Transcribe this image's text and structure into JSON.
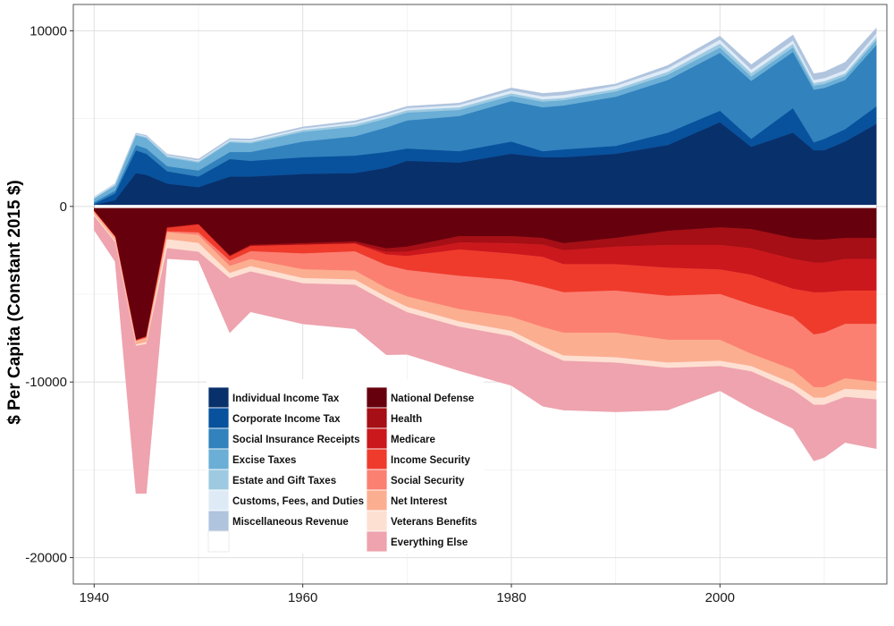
{
  "chart_data": {
    "type": "area",
    "title": "",
    "xlabel": "",
    "ylabel": "$ Per Capita (Constant 2015 $)",
    "xlim": [
      1938,
      2016
    ],
    "ylim": [
      -21500,
      11500
    ],
    "x_ticks": [
      1940,
      1960,
      1980,
      2000
    ],
    "y_ticks": [
      10000,
      0,
      -10000,
      -20000
    ],
    "x_tick_labels": [
      "1940",
      "1960",
      "1980",
      "2000"
    ],
    "y_tick_labels": [
      "10000",
      "0",
      "-10000",
      "-20000"
    ],
    "grid": true,
    "legend_position": "bottom-left-inside",
    "stacked": true,
    "x": [
      1940,
      1942,
      1944,
      1945,
      1947,
      1950,
      1953,
      1955,
      1960,
      1965,
      1968,
      1970,
      1975,
      1980,
      1983,
      1985,
      1990,
      1995,
      2000,
      2003,
      2007,
      2009,
      2010,
      2012,
      2015
    ],
    "revenue": [
      {
        "name": "Individual Income Tax",
        "color": "#08306b",
        "values": [
          100,
          350,
          1900,
          1800,
          1300,
          1100,
          1700,
          1700,
          1850,
          1900,
          2200,
          2600,
          2500,
          3000,
          2800,
          2800,
          3000,
          3500,
          4800,
          3400,
          4200,
          3200,
          3200,
          3700,
          4700
        ]
      },
      {
        "name": "Corporate Income Tax",
        "color": "#08519c",
        "values": [
          50,
          400,
          1300,
          1200,
          700,
          600,
          1000,
          900,
          950,
          1000,
          900,
          700,
          650,
          700,
          350,
          450,
          450,
          700,
          650,
          450,
          1400,
          450,
          650,
          700,
          1000
        ]
      },
      {
        "name": "Social Insurance Receipts",
        "color": "#3182bd",
        "values": [
          100,
          150,
          300,
          300,
          300,
          350,
          400,
          500,
          900,
          1100,
          1400,
          1600,
          2000,
          2300,
          2500,
          2500,
          2800,
          3000,
          3300,
          3300,
          3200,
          3000,
          2900,
          2800,
          3500
        ]
      },
      {
        "name": "Excise Taxes",
        "color": "#6baed6",
        "values": [
          200,
          300,
          550,
          600,
          500,
          450,
          550,
          500,
          550,
          550,
          500,
          450,
          350,
          300,
          320,
          300,
          300,
          300,
          300,
          250,
          260,
          230,
          230,
          230,
          280
        ]
      },
      {
        "name": "Estate and Gift Taxes",
        "color": "#9ecae1",
        "values": [
          30,
          40,
          60,
          70,
          80,
          80,
          80,
          90,
          110,
          130,
          130,
          130,
          150,
          150,
          130,
          130,
          140,
          170,
          230,
          200,
          200,
          150,
          150,
          150,
          170
        ]
      },
      {
        "name": "Customs, Fees, and Duties",
        "color": "#deebf7",
        "values": [
          40,
          30,
          30,
          30,
          40,
          40,
          60,
          70,
          90,
          110,
          120,
          130,
          130,
          160,
          170,
          170,
          180,
          200,
          220,
          200,
          200,
          180,
          180,
          180,
          210
        ]
      },
      {
        "name": "Miscellaneous Revenue",
        "color": "#b0c4de",
        "values": [
          20,
          30,
          40,
          50,
          60,
          80,
          80,
          80,
          80,
          90,
          90,
          90,
          110,
          140,
          170,
          180,
          110,
          160,
          200,
          280,
          310,
          350,
          350,
          450,
          300
        ]
      }
    ],
    "spending": [
      {
        "name": "National Defense",
        "color": "#67000d",
        "values": [
          -250,
          -1700,
          -7600,
          -7400,
          -1200,
          -1000,
          -2800,
          -2200,
          -2100,
          -2000,
          -2400,
          -2300,
          -1700,
          -1700,
          -1800,
          -2100,
          -1800,
          -1400,
          -1200,
          -1300,
          -1800,
          -1900,
          -1900,
          -1800,
          -1800
        ]
      },
      {
        "name": "Health",
        "color": "#a50f15",
        "values": [
          -10,
          -10,
          -20,
          -20,
          -30,
          -40,
          -50,
          -60,
          -90,
          -120,
          -200,
          -280,
          -360,
          -400,
          -380,
          -400,
          -500,
          -800,
          -1000,
          -1100,
          -1200,
          -1300,
          -1300,
          -1200,
          -1200
        ]
      },
      {
        "name": "Medicare",
        "color": "#cb181d",
        "values": [
          0,
          0,
          0,
          0,
          0,
          0,
          0,
          0,
          0,
          0,
          -150,
          -250,
          -400,
          -600,
          -700,
          -800,
          -1000,
          -1300,
          -1400,
          -1500,
          -1700,
          -1700,
          -1700,
          -1800,
          -1800
        ]
      },
      {
        "name": "Income Security",
        "color": "#ef3b2c",
        "values": [
          -40,
          -40,
          -40,
          -50,
          -200,
          -450,
          -250,
          -300,
          -500,
          -450,
          -600,
          -800,
          -1500,
          -1500,
          -1700,
          -1600,
          -1500,
          -1600,
          -1400,
          -1700,
          -1600,
          -2400,
          -2300,
          -1900,
          -1900
        ]
      },
      {
        "name": "Social Security",
        "color": "#fb8072",
        "values": [
          -5,
          -5,
          -10,
          -20,
          -50,
          -150,
          -300,
          -450,
          -900,
          -1100,
          -1300,
          -1500,
          -1900,
          -2100,
          -2300,
          -2300,
          -2400,
          -2500,
          -2600,
          -2800,
          -3000,
          -3000,
          -3100,
          -3100,
          -3300
        ]
      },
      {
        "name": "Net Interest",
        "color": "#fcae91",
        "values": [
          -150,
          -200,
          -200,
          -250,
          -400,
          -450,
          -400,
          -400,
          -500,
          -500,
          -500,
          -600,
          -700,
          -800,
          -1100,
          -1300,
          -1400,
          -1300,
          -1200,
          -700,
          -800,
          -600,
          -600,
          -600,
          -500
        ]
      },
      {
        "name": "Veterans Benefits",
        "color": "#fee0d2",
        "values": [
          -100,
          -80,
          -80,
          -100,
          -500,
          -500,
          -300,
          -300,
          -300,
          -300,
          -300,
          -300,
          -300,
          -300,
          -300,
          -300,
          -300,
          -300,
          -300,
          -300,
          -350,
          -400,
          -400,
          -450,
          -500
        ]
      },
      {
        "name": "Everything Else",
        "color": "#eea3ae",
        "values": [
          -800,
          -1100,
          -8400,
          -8500,
          -600,
          -500,
          -3100,
          -2300,
          -2300,
          -2500,
          -3000,
          -2400,
          -2500,
          -2800,
          -3100,
          -2800,
          -2800,
          -2400,
          -1400,
          -2100,
          -2200,
          -3200,
          -3000,
          -2600,
          -2800
        ]
      }
    ]
  }
}
